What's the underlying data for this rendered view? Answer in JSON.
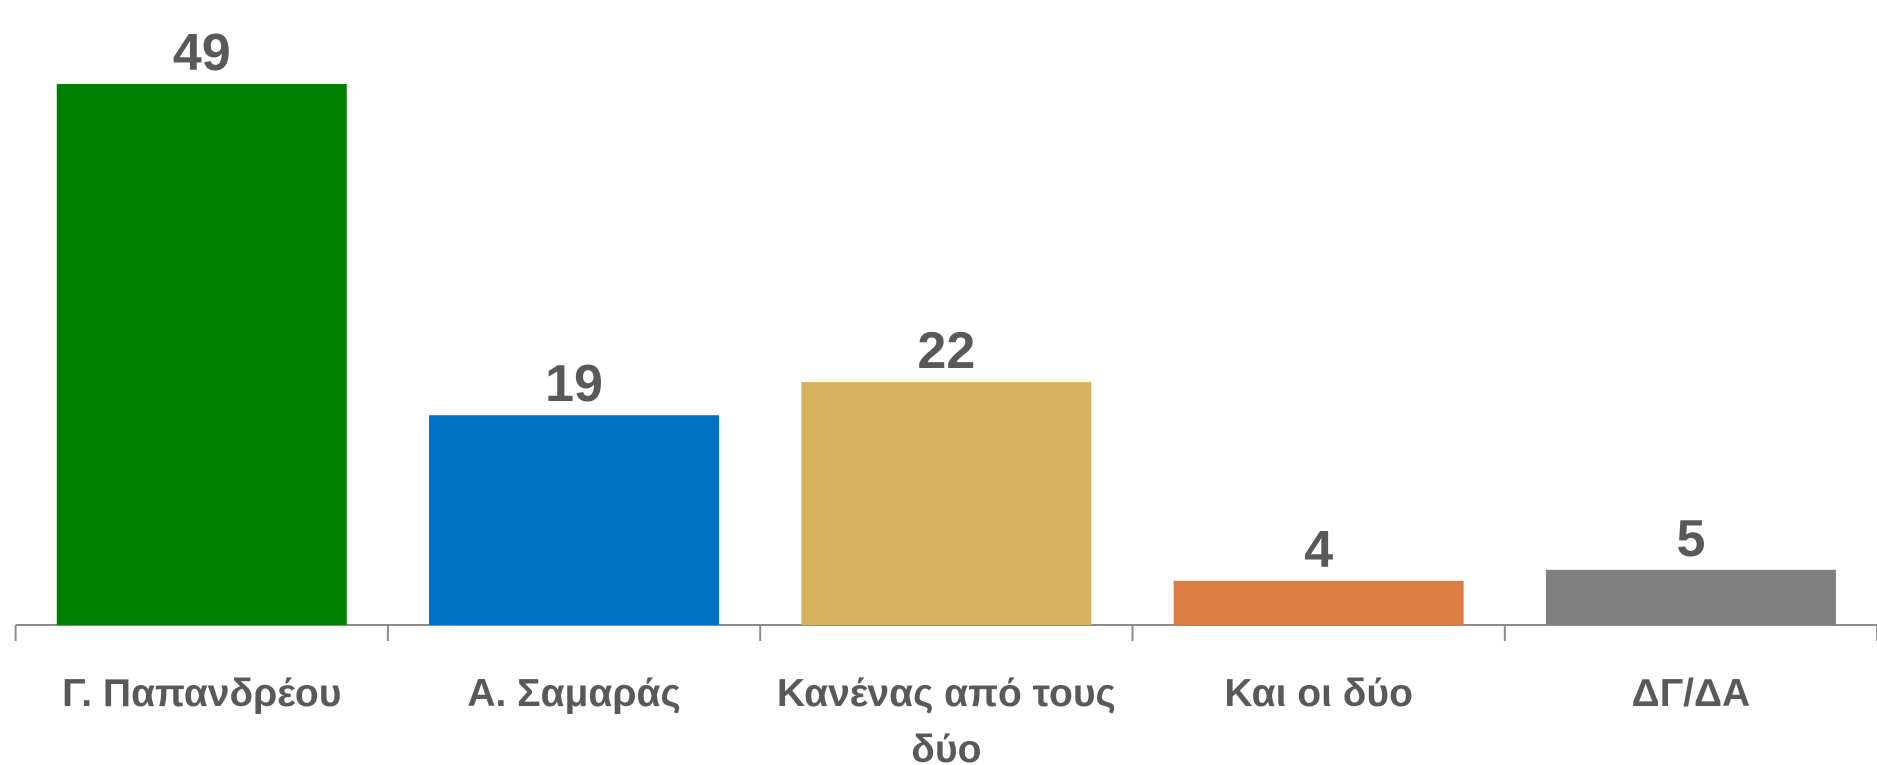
{
  "chart_data": {
    "type": "bar",
    "categories": [
      "Γ. Παπανδρέου",
      "Α. Σαμαράς",
      "Κανένας από τους δύο",
      "Και οι δύο",
      "ΔΓ/ΔΑ"
    ],
    "values": [
      49,
      19,
      22,
      4,
      5
    ],
    "colors": [
      "#008000",
      "#0070c0",
      "#d6b25e",
      "#dd7f45",
      "#808080"
    ]
  }
}
